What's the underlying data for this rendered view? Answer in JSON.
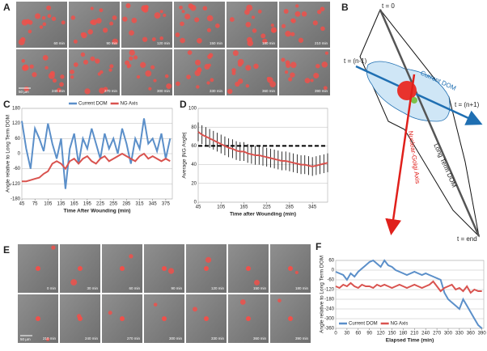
{
  "panel_letters": [
    "A",
    "B",
    "C",
    "D",
    "E",
    "F"
  ],
  "panel_a": {
    "time_labels": [
      "60 min",
      "90 min",
      "120 min",
      "150 min",
      "180 min",
      "210 min",
      "240 min",
      "270 min",
      "300 min",
      "330 min",
      "360 min",
      "390 min"
    ],
    "scale_bar": "50 µm"
  },
  "panel_b": {
    "t_start": "t = 0",
    "t_prev": "t = (n-1)",
    "current_dom": "Current DOM",
    "t_next": "t = (n+1)",
    "long_term_dom": "Long Term DOM",
    "ng_axis": "Nuclear-Golgi Axis",
    "t_end": "t = end"
  },
  "panel_e": {
    "time_labels": [
      "0 min",
      "30 min",
      "60 min",
      "90 min",
      "120 min",
      "150 min",
      "180 min",
      "210 min",
      "240 min",
      "270 min",
      "300 min",
      "330 min",
      "360 min",
      "390 min"
    ],
    "scale_bar": "50 µm"
  },
  "chart_data": [
    {
      "type": "line",
      "x_label": "Time After Wounding (min)",
      "y_label": "Angle relative to Long Term DOM",
      "x": [
        45,
        55,
        65,
        75,
        85,
        95,
        105,
        115,
        125,
        135,
        145,
        155,
        165,
        175,
        185,
        195,
        205,
        215,
        225,
        235,
        245,
        255,
        265,
        275,
        285,
        295,
        305,
        315,
        325,
        335,
        345,
        355,
        365,
        375,
        385
      ],
      "series": [
        {
          "name": "Current DOM",
          "color": "#5b8fc9",
          "values": [
            130,
            20,
            -60,
            100,
            60,
            10,
            120,
            40,
            -20,
            60,
            -140,
            20,
            80,
            -40,
            60,
            20,
            100,
            40,
            -20,
            80,
            20,
            60,
            0,
            100,
            40,
            -40,
            60,
            20,
            140,
            40,
            60,
            10,
            80,
            -20,
            60
          ]
        },
        {
          "name": "NG Axis",
          "color": "#d9534f",
          "values": [
            -110,
            -110,
            -105,
            -100,
            -95,
            -80,
            -70,
            -40,
            -30,
            -40,
            -60,
            -30,
            -20,
            -40,
            -20,
            -10,
            -30,
            -40,
            -20,
            -10,
            -30,
            -20,
            -10,
            0,
            -10,
            -20,
            -30,
            -10,
            0,
            -20,
            -10,
            -20,
            -30,
            -20,
            -30
          ]
        }
      ],
      "xlim": [
        45,
        390
      ],
      "ylim": [
        -180,
        180
      ],
      "xticks": [
        45,
        75,
        105,
        135,
        165,
        195,
        225,
        255,
        285,
        315,
        345,
        375
      ],
      "yticks": [
        -180,
        -120,
        -60,
        0,
        60,
        120,
        180
      ],
      "grid": true,
      "legend": "top"
    },
    {
      "type": "line",
      "x_label": "Time after Wounding (min)",
      "y_label": "Average |NG Angle|",
      "x": [
        45,
        55,
        65,
        75,
        85,
        95,
        105,
        115,
        125,
        135,
        145,
        155,
        165,
        175,
        185,
        195,
        205,
        215,
        225,
        235,
        245,
        255,
        265,
        275,
        285,
        295,
        305,
        315,
        325,
        335,
        345,
        355,
        365,
        375,
        385
      ],
      "series": [
        {
          "color": "#d9534f",
          "values": [
            75,
            72,
            70,
            68,
            66,
            64,
            62,
            60,
            58,
            57,
            55,
            54,
            54,
            52,
            51,
            50,
            50,
            49,
            48,
            47,
            46,
            45,
            44,
            44,
            43,
            42,
            41,
            40,
            40,
            39,
            38,
            39,
            40,
            41,
            42
          ],
          "errors": [
            10,
            10,
            10,
            10,
            10,
            10,
            10,
            10,
            10,
            10,
            10,
            10,
            10,
            10,
            10,
            10,
            10,
            10,
            10,
            10,
            10,
            10,
            10,
            10,
            10,
            10,
            10,
            10,
            10,
            10,
            10,
            10,
            10,
            10,
            10
          ]
        }
      ],
      "reference_line": 60,
      "xlim": [
        45,
        385
      ],
      "ylim": [
        0,
        100
      ],
      "xticks": [
        45,
        105,
        165,
        225,
        285,
        345
      ],
      "yticks": [
        0,
        20,
        40,
        60,
        80,
        100
      ],
      "grid": true
    },
    {
      "type": "line",
      "x_label": "Elapsed Time (min)",
      "y_label": "Angle relative to Long Term DOM",
      "x": [
        0,
        10,
        20,
        30,
        40,
        50,
        60,
        70,
        80,
        90,
        100,
        110,
        120,
        130,
        140,
        150,
        160,
        170,
        180,
        190,
        200,
        210,
        220,
        230,
        240,
        250,
        260,
        270,
        280,
        290,
        300,
        310,
        320,
        330,
        340,
        350,
        360,
        370,
        380,
        390
      ],
      "series": [
        {
          "name": "Current DOM",
          "color": "#5b8fc9",
          "values": [
            -10,
            -20,
            -30,
            -60,
            -20,
            -40,
            -10,
            10,
            30,
            50,
            60,
            40,
            20,
            60,
            30,
            20,
            0,
            -10,
            -20,
            -30,
            -20,
            -10,
            -20,
            -30,
            -20,
            -30,
            -40,
            -50,
            -60,
            -140,
            -180,
            -200,
            -220,
            -240,
            -180,
            -220,
            -260,
            -300,
            -340,
            -360
          ]
        },
        {
          "name": "NG Axis",
          "color": "#d9534f",
          "values": [
            -100,
            -110,
            -90,
            -100,
            -80,
            -100,
            -110,
            -90,
            -100,
            -100,
            -110,
            -90,
            -100,
            -90,
            -100,
            -110,
            -100,
            -90,
            -100,
            -110,
            -100,
            -90,
            -100,
            -110,
            -100,
            -90,
            -70,
            -100,
            -130,
            -110,
            -100,
            -90,
            -120,
            -110,
            -130,
            -100,
            -140,
            -120,
            -130,
            -130
          ]
        }
      ],
      "xlim": [
        0,
        395
      ],
      "ylim": [
        -360,
        60
      ],
      "xticks": [
        0,
        30,
        60,
        90,
        120,
        150,
        180,
        210,
        240,
        270,
        300,
        330,
        360,
        390
      ],
      "yticks": [
        -360,
        -300,
        -240,
        -180,
        -120,
        -60,
        0,
        60
      ],
      "grid": true,
      "legend": "bottom-left"
    }
  ]
}
